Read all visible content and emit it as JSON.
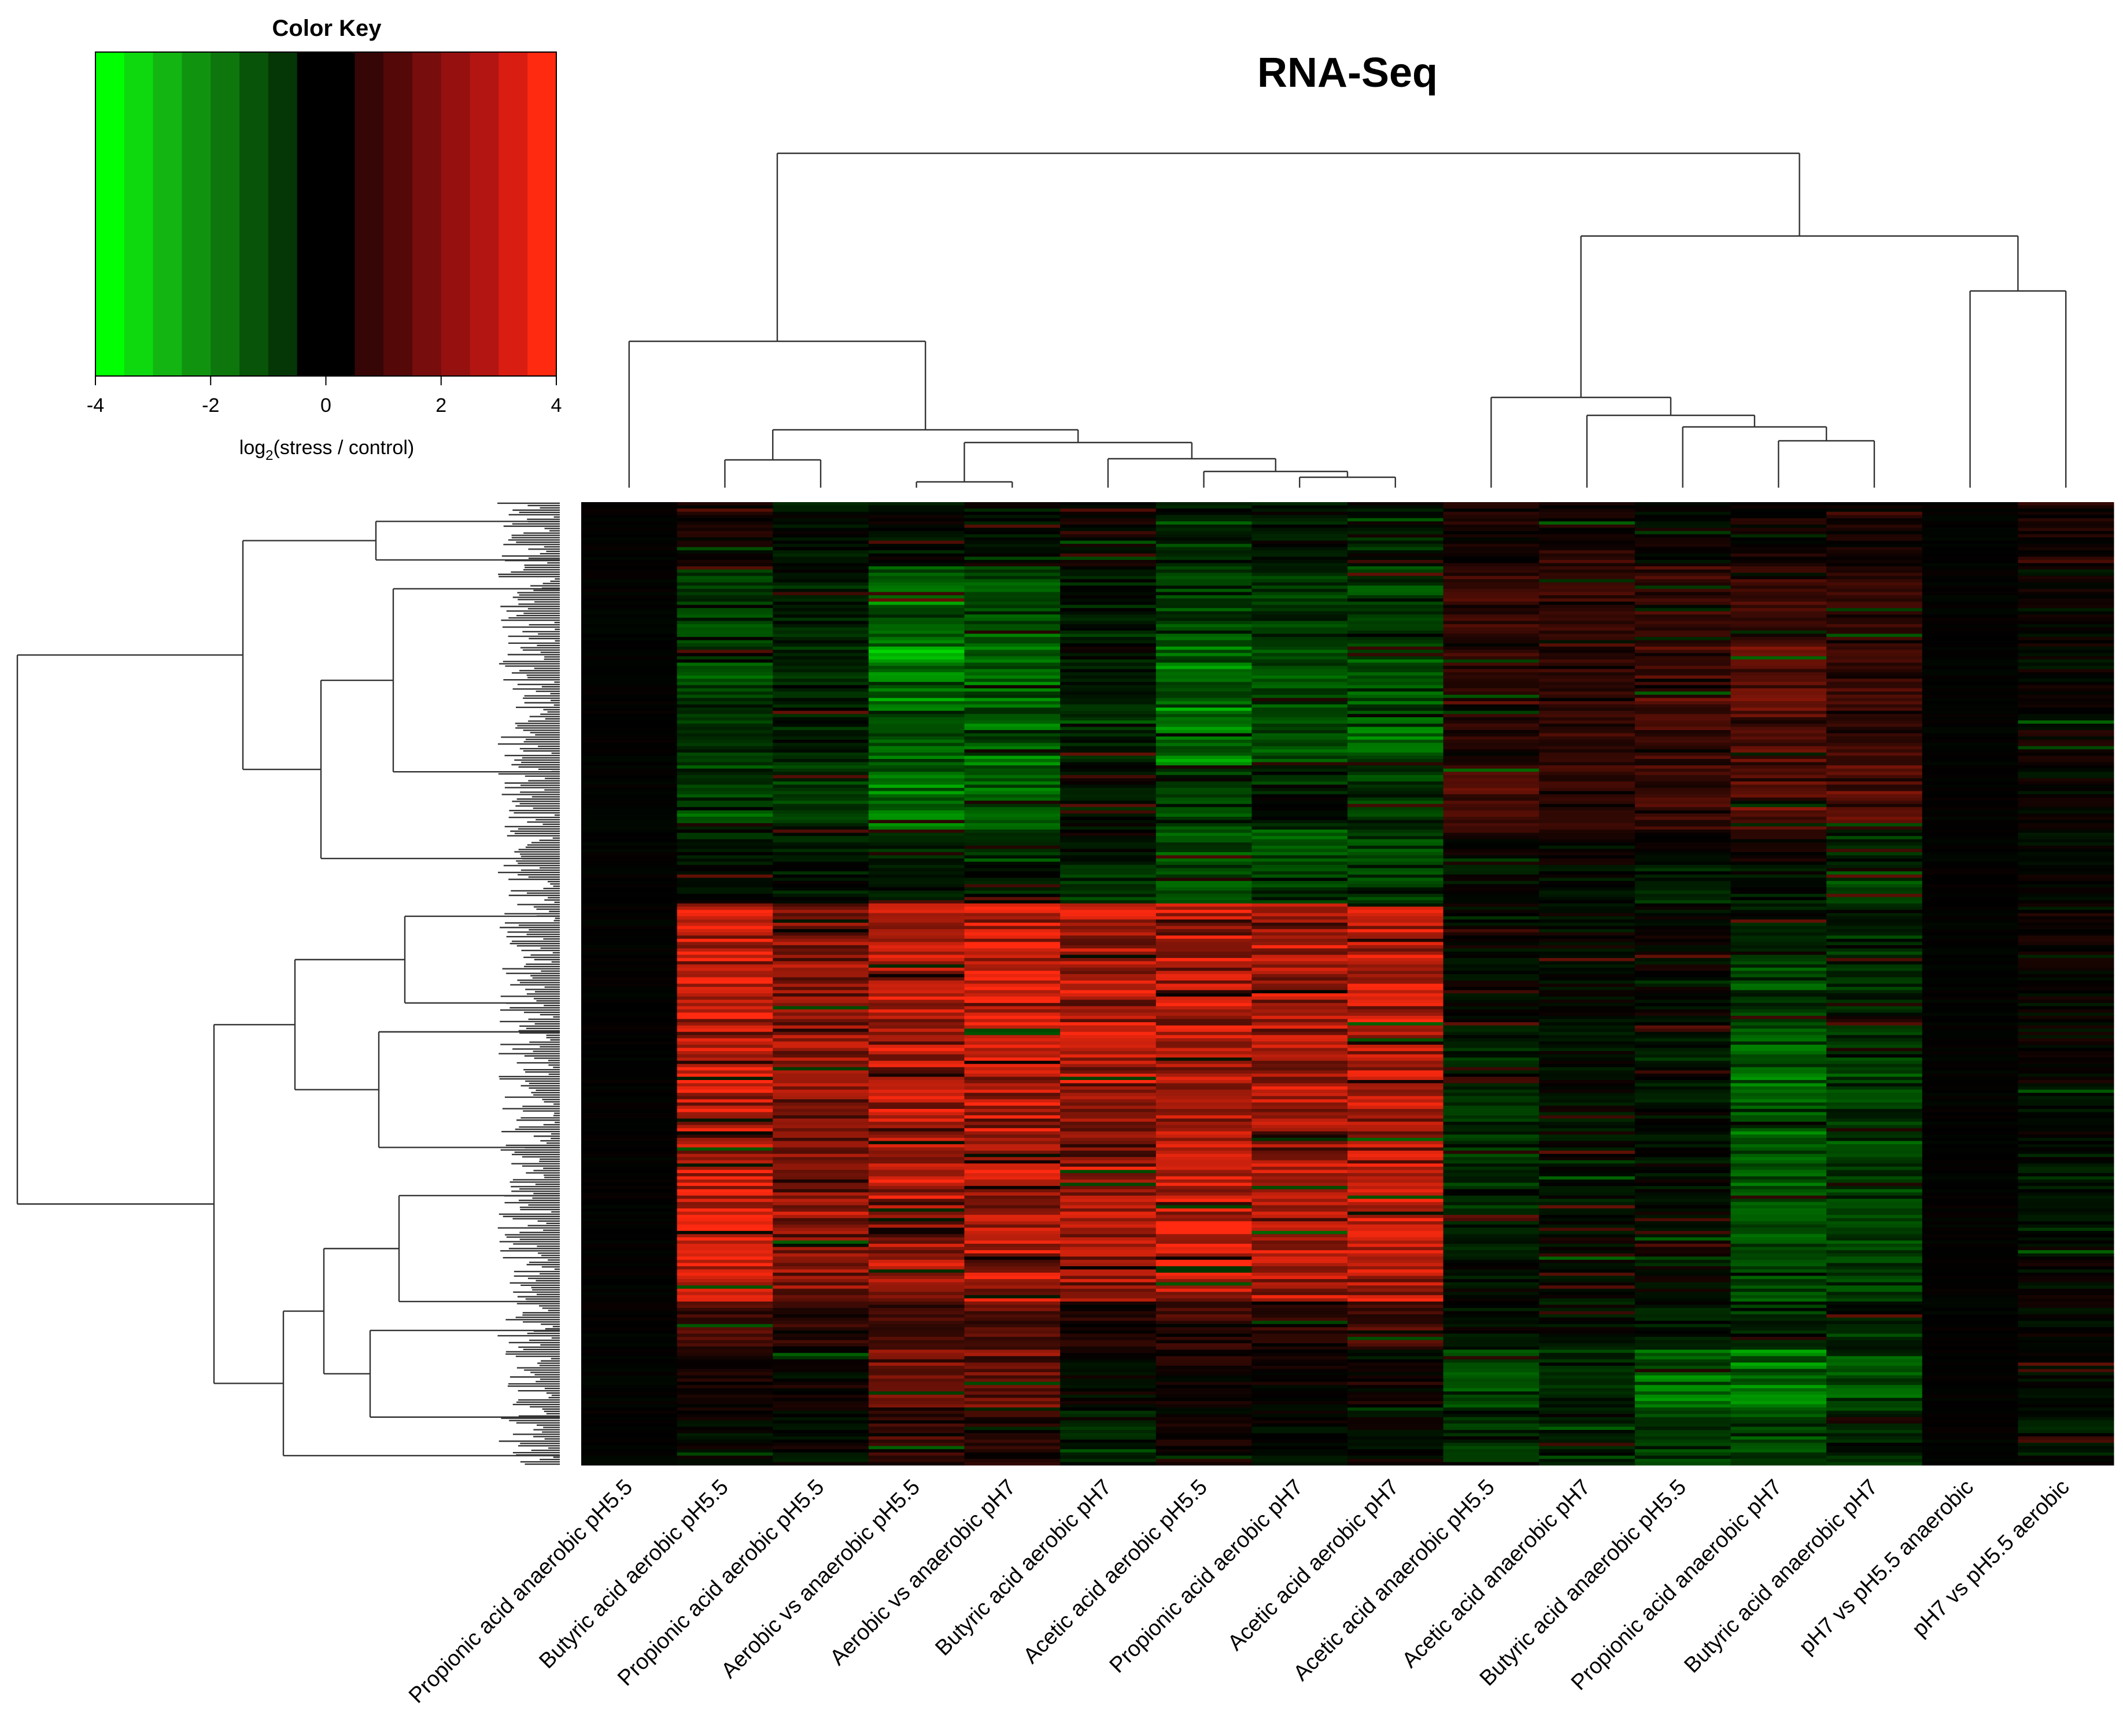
{
  "chart_data": {
    "type": "heatmap",
    "title": "RNA-Seq",
    "color_key": {
      "title": "Color Key",
      "range": [
        -4,
        4
      ],
      "ticks": [
        "-4",
        "-2",
        "0",
        "2",
        "4"
      ],
      "label_prefix": "log",
      "label_subscript": "2",
      "label_suffix": "(stress / control)",
      "colors": [
        "#00ff00",
        "#0ed90e",
        "#12b512",
        "#109410",
        "#0d770d",
        "#085408",
        "#053605",
        "#000000",
        "#000000",
        "#360505",
        "#540808",
        "#770d0d",
        "#961010",
        "#b31512",
        "#d91d12",
        "#ff2a10"
      ]
    },
    "columns": [
      "Propionic acid anaerobic pH5.5",
      "Butyric acid aerobic pH5.5",
      "Propionic acid aerobic pH5.5",
      "Aerobic vs anaerobic pH5.5",
      "Aerobic vs anaerobic pH7",
      "Butyric acid aerobic pH7",
      "Acetic acid aerobic pH5.5",
      "Propionic acid aerobic pH7",
      "Acetic acid aerobic pH7",
      "Acetic acid anaerobic pH5.5",
      "Acetic acid anaerobic pH7",
      "Butyric acid anaerobic pH5.5",
      "Propionic acid anaerobic pH7",
      "Butyric acid anaerobic pH7",
      "pH7 vs pH5.5 anaerobic",
      "pH7 vs pH5.5 aerobic"
    ],
    "row_block_fractions": [
      0.0,
      0.066,
      0.146,
      0.206,
      0.272,
      0.34,
      0.378,
      0.416,
      0.466,
      0.54,
      0.625,
      0.688,
      0.76,
      0.83,
      0.88,
      0.94,
      1.0
    ],
    "block_values": [
      [
        0.0,
        0.3,
        -0.3,
        -0.2,
        -0.3,
        0.2,
        -0.4,
        -0.3,
        -0.2,
        0.3,
        0.3,
        0.1,
        0.3,
        0.3,
        0.0,
        0.6
      ],
      [
        0.0,
        -1.0,
        -0.5,
        -2.0,
        -1.5,
        -0.4,
        -1.2,
        -1.0,
        -1.2,
        0.8,
        0.8,
        0.9,
        1.0,
        0.7,
        0.0,
        0.0
      ],
      [
        0.0,
        -1.2,
        -0.6,
        -2.6,
        -2.1,
        -0.4,
        -2.0,
        -1.2,
        -1.4,
        0.6,
        0.8,
        1.3,
        1.7,
        1.1,
        0.0,
        0.0
      ],
      [
        0.0,
        -0.8,
        -0.5,
        -1.6,
        -1.8,
        -0.5,
        -2.1,
        -1.3,
        -1.8,
        0.5,
        0.8,
        1.1,
        1.3,
        0.9,
        0.0,
        0.2
      ],
      [
        0.0,
        -1.2,
        -0.8,
        -2.2,
        -1.6,
        -0.3,
        -1.0,
        -0.4,
        -0.8,
        1.2,
        0.8,
        1.0,
        1.5,
        1.5,
        0.0,
        0.0
      ],
      [
        0.0,
        -0.6,
        -0.4,
        -0.6,
        -0.6,
        -0.3,
        -1.2,
        -1.4,
        -1.4,
        0.2,
        0.3,
        0.1,
        0.2,
        -0.5,
        0.0,
        0.0
      ],
      [
        0.0,
        -0.3,
        -0.3,
        -0.4,
        -0.3,
        -1.0,
        -1.2,
        -1.0,
        -1.1,
        -0.2,
        -0.3,
        -0.6,
        -0.5,
        -1.5,
        0.0,
        0.0
      ],
      [
        0.0,
        3.4,
        2.4,
        3.2,
        3.6,
        3.1,
        3.3,
        3.0,
        3.4,
        0.0,
        0.0,
        0.0,
        -0.4,
        -0.3,
        0.0,
        0.2
      ],
      [
        0.0,
        3.6,
        2.6,
        3.3,
        3.6,
        3.2,
        3.4,
        3.0,
        3.5,
        0.0,
        0.0,
        0.0,
        -1.2,
        -0.8,
        0.0,
        0.0
      ],
      [
        0.0,
        3.7,
        2.7,
        3.2,
        3.5,
        3.0,
        3.4,
        3.0,
        3.4,
        -0.6,
        -0.2,
        -0.4,
        -1.6,
        -1.1,
        0.0,
        0.0
      ],
      [
        0.0,
        3.2,
        2.2,
        3.0,
        3.3,
        2.8,
        3.2,
        2.8,
        3.2,
        -0.7,
        -0.2,
        -0.2,
        -1.5,
        -1.1,
        0.0,
        -0.2
      ],
      [
        0.0,
        3.6,
        2.5,
        3.3,
        3.5,
        3.0,
        3.8,
        3.1,
        3.5,
        -0.6,
        -0.1,
        -0.1,
        -1.6,
        -1.1,
        0.0,
        -0.4
      ],
      [
        0.0,
        3.4,
        2.4,
        3.0,
        3.2,
        2.8,
        3.6,
        2.9,
        3.3,
        -0.3,
        0.0,
        0.0,
        -1.4,
        -0.9,
        0.0,
        0.0
      ],
      [
        0.0,
        1.2,
        0.8,
        1.0,
        1.5,
        0.6,
        1.1,
        0.7,
        1.2,
        -0.2,
        -0.2,
        -0.4,
        -0.6,
        -0.4,
        0.0,
        0.0
      ],
      [
        0.0,
        0.2,
        0.2,
        2.0,
        2.0,
        0.0,
        0.3,
        0.1,
        0.2,
        -1.4,
        -0.8,
        -1.9,
        -2.0,
        -1.5,
        0.0,
        0.0
      ],
      [
        0.0,
        0.0,
        0.0,
        0.8,
        0.8,
        -0.5,
        0.2,
        0.0,
        0.0,
        -0.6,
        -0.4,
        -0.9,
        -1.2,
        -0.7,
        0.0,
        -0.3
      ]
    ]
  }
}
